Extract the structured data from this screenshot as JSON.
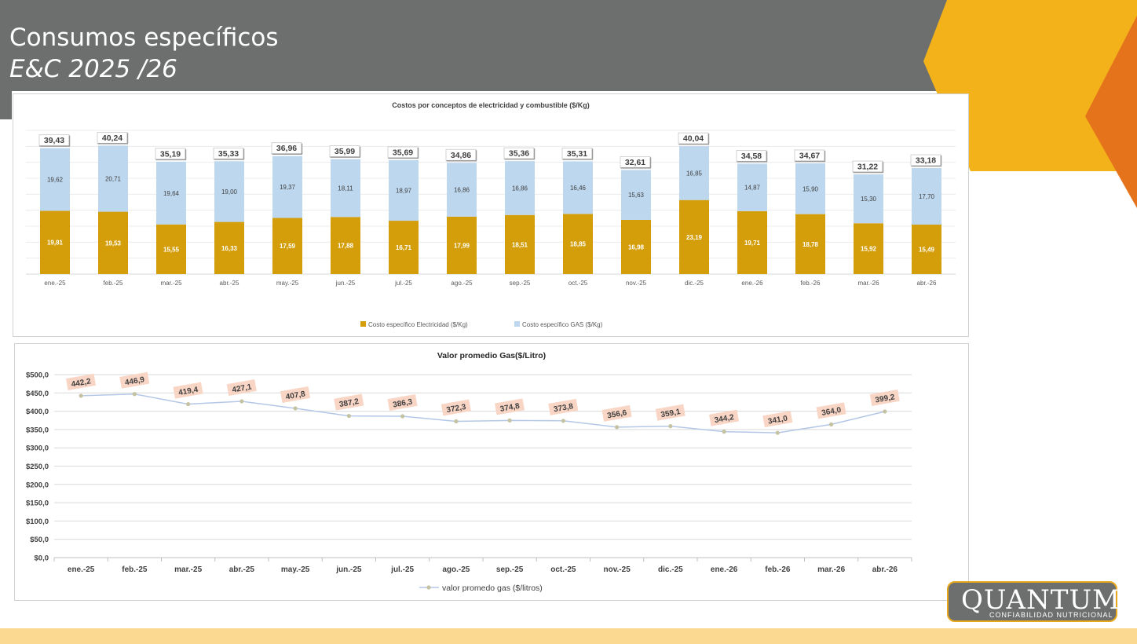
{
  "slide": {
    "title": "Consumos específicos",
    "subtitle": "E&C 2025 /26"
  },
  "logo": {
    "name": "QUANTUM",
    "tagline": "CONFIABILIDAD NUTRICIONAL"
  },
  "colors": {
    "header": "#6c6f6d",
    "accent_yellow": "#f3b21a",
    "accent_orange": "#e4731b",
    "bottom_band": "#fbd990",
    "electricity": "#d49e0b",
    "gas": "#bdd7ee",
    "line": "#b4c7e7",
    "marker": "#c4c2a0",
    "label_bg": "#f8d5c4"
  },
  "chart_data": [
    {
      "type": "bar",
      "stacked": true,
      "title": "Costos por conceptos de electricidad y combustible ($/Kg)",
      "categories": [
        "ene.-25",
        "feb.-25",
        "mar.-25",
        "abr.-25",
        "may.-25",
        "jun.-25",
        "jul.-25",
        "ago.-25",
        "sep.-25",
        "oct.-25",
        "nov.-25",
        "dic.-25",
        "ene.-26",
        "feb.-26",
        "mar.-26",
        "abr.-26"
      ],
      "series": [
        {
          "name": "Costo específico Electricidad ($/Kg)",
          "values": [
            "19,81",
            "19,53",
            "15,55",
            "16,33",
            "17,59",
            "17,88",
            "16,71",
            "17,99",
            "18,51",
            "18,85",
            "16,98",
            "23,19",
            "19,71",
            "18,78",
            "15,92",
            "15,49"
          ]
        },
        {
          "name": "Costo específico GAS ($/Kg)",
          "values": [
            "19,62",
            "20,71",
            "19,64",
            "19,00",
            "19,37",
            "18,11",
            "18,97",
            "16,86",
            "16,86",
            "16,46",
            "15,63",
            "16,85",
            "14,87",
            "15,90",
            "15,30",
            "17,70"
          ]
        }
      ],
      "totals": [
        "39,43",
        "40,24",
        "35,19",
        "35,33",
        "36,96",
        "35,99",
        "35,69",
        "34,86",
        "35,36",
        "35,31",
        "32,61",
        "40,04",
        "34,58",
        "34,67",
        "31,22",
        "33,18"
      ],
      "ylim": [
        0,
        45
      ],
      "grid": true,
      "legend": "bottom"
    },
    {
      "type": "line",
      "title": "Valor promedio Gas($/Litro)",
      "categories": [
        "ene.-25",
        "feb.-25",
        "mar.-25",
        "abr.-25",
        "may.-25",
        "jun.-25",
        "jul.-25",
        "ago.-25",
        "sep.-25",
        "oct.-25",
        "nov.-25",
        "dic.-25",
        "ene.-26",
        "feb.-26",
        "mar.-26",
        "abr.-26"
      ],
      "series": [
        {
          "name": "valor promedo gas ($/litros)",
          "values": [
            "442,2",
            "446,9",
            "419,4",
            "427,1",
            "407,8",
            "387,2",
            "386,3",
            "372,3",
            "374,8",
            "373,8",
            "356,6",
            "359,1",
            "344,2",
            "341,0",
            "364,0",
            "399,2"
          ]
        }
      ],
      "yticks": [
        "$0,0",
        "$50,0",
        "$100,0",
        "$150,0",
        "$200,0",
        "$250,0",
        "$300,0",
        "$350,0",
        "$400,0",
        "$450,0",
        "$500,0"
      ],
      "ylim": [
        0,
        500
      ],
      "grid": true,
      "legend": "bottom"
    }
  ]
}
